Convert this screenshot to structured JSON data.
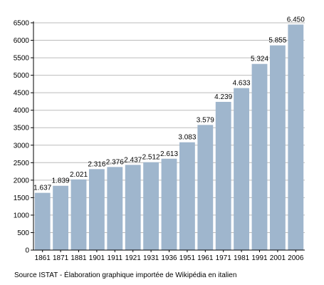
{
  "chart_data": {
    "type": "bar",
    "categories": [
      "1861",
      "1871",
      "1881",
      "1901",
      "1911",
      "1921",
      "1931",
      "1936",
      "1951",
      "1961",
      "1971",
      "1981",
      "1991",
      "2001",
      "2006"
    ],
    "values": [
      1637,
      1839,
      2021,
      2316,
      2376,
      2437,
      2512,
      2613,
      3083,
      3579,
      4239,
      4633,
      5324,
      5855,
      6450
    ],
    "data_labels": [
      "1.637",
      "1.839",
      "2.021",
      "2.316",
      "2.376",
      "2.437",
      "2.512",
      "2.613",
      "3.083",
      "3.579",
      "4.239",
      "4.633",
      "5.324",
      "5.855",
      "6.450"
    ],
    "y_ticks": [
      "0",
      "500",
      "1000",
      "1500",
      "2000",
      "2500",
      "3000",
      "3500",
      "4000",
      "4500",
      "5000",
      "5500",
      "6000",
      "6500"
    ],
    "ylim": [
      0,
      6500
    ],
    "grid": true,
    "legend": "none",
    "bar_color": "#9fb6cd",
    "grid_color": "#bbbbbb"
  },
  "source_text": "Source ISTAT - Élaboration graphique importée de Wikipédia en italien"
}
